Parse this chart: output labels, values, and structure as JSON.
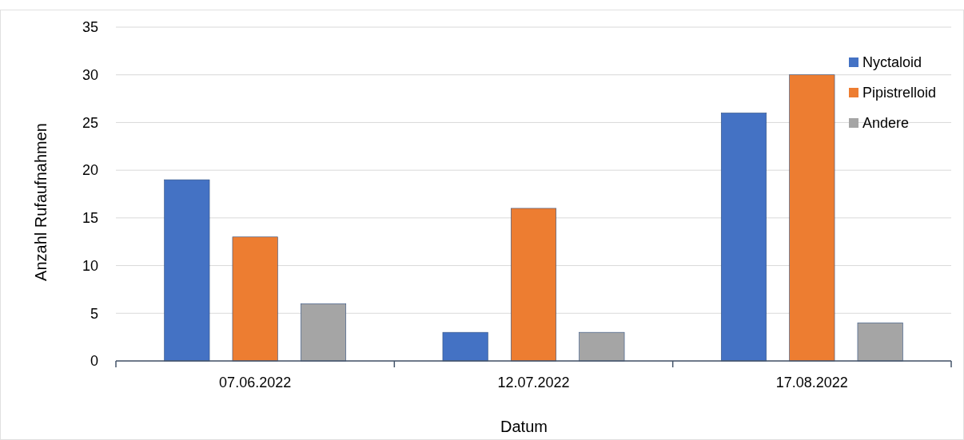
{
  "chart_data": {
    "type": "bar",
    "xlabel": "Datum",
    "ylabel": "Anzahl Rufaufnahmen",
    "categories": [
      "07.06.2022",
      "12.07.2022",
      "17.08.2022"
    ],
    "series": [
      {
        "name": "Nyctaloid",
        "color": "#4472c4",
        "values": [
          19,
          3,
          26
        ]
      },
      {
        "name": "Pipistrelloid",
        "color": "#ed7d31",
        "values": [
          13,
          16,
          30
        ]
      },
      {
        "name": "Andere",
        "color": "#a5a5a5",
        "values": [
          6,
          3,
          4
        ]
      }
    ],
    "ylim": [
      0,
      35
    ],
    "yticks": [
      0,
      5,
      10,
      15,
      20,
      25,
      30,
      35
    ],
    "grid": "y",
    "legend": "top right"
  }
}
